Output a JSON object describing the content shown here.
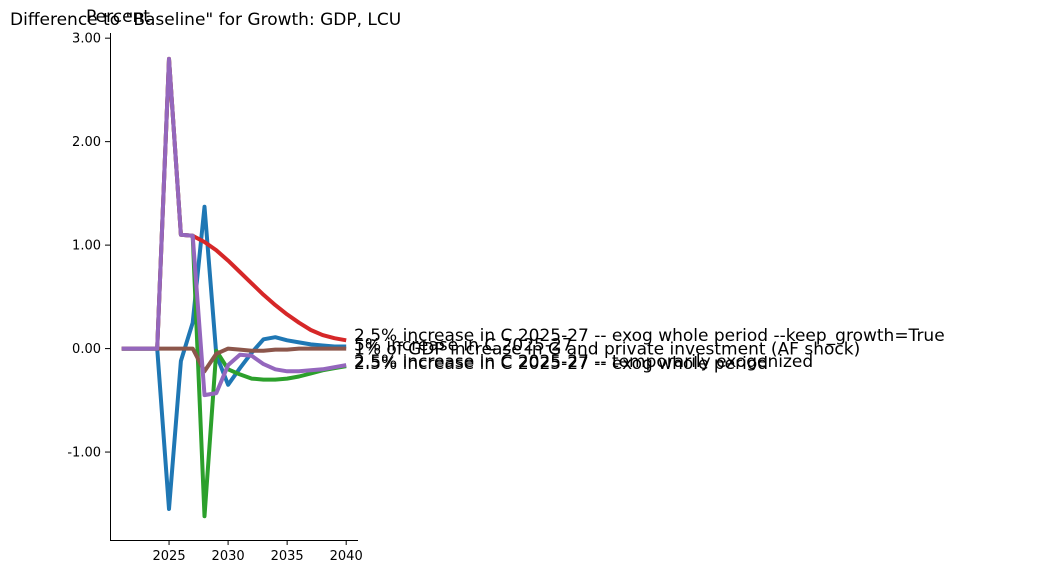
{
  "chart_data": {
    "type": "line",
    "title": "Difference to \"Baseline\" for Growth: GDP, LCU",
    "ylabel": "Percent",
    "xlabel": "",
    "xlim": [
      2020,
      2041
    ],
    "ylim": [
      -1.85,
      3.05
    ],
    "xticks": [
      2025,
      2030,
      2035,
      2040
    ],
    "xtick_labels": [
      "2025",
      "2030",
      "2035",
      "2040"
    ],
    "yticks": [
      3.0,
      2.0,
      1.0,
      0.0,
      -1.0
    ],
    "ytick_labels": [
      "3.00",
      "2.00",
      "1.00",
      "0.00",
      "-1.00"
    ],
    "grid": false,
    "series": [
      {
        "name": "5% increase in C 2025-27",
        "color": "#1f77b4",
        "x": [
          2021,
          2022,
          2023,
          2024,
          2025,
          2026,
          2027,
          2028,
          2029,
          2030,
          2031,
          2032,
          2033,
          2034,
          2035,
          2036,
          2037,
          2038,
          2039,
          2040
        ],
        "values": [
          0,
          0,
          0,
          0,
          -1.55,
          -0.12,
          0.25,
          1.37,
          -0.06,
          -0.35,
          -0.19,
          -0.04,
          0.09,
          0.11,
          0.08,
          0.06,
          0.04,
          0.03,
          0.02,
          0.02
        ]
      },
      {
        "name": "2.5% increase in C 2025-27 -- exog whole period",
        "color": "#2ca02c",
        "x": [
          2021,
          2022,
          2023,
          2024,
          2025,
          2026,
          2027,
          2028,
          2029,
          2030,
          2031,
          2032,
          2033,
          2034,
          2035,
          2036,
          2037,
          2038,
          2039,
          2040
        ],
        "values": [
          0,
          0,
          0,
          0,
          2.8,
          1.1,
          1.09,
          -1.62,
          -0.02,
          -0.2,
          -0.25,
          -0.29,
          -0.3,
          -0.3,
          -0.29,
          -0.27,
          -0.24,
          -0.21,
          -0.19,
          -0.17
        ]
      },
      {
        "name": "2.5% increase in C 2025-27 -- exog whole period --keep_growth=True",
        "color": "#d62728",
        "x": [
          2021,
          2022,
          2023,
          2024,
          2025,
          2026,
          2027,
          2028,
          2029,
          2030,
          2031,
          2032,
          2033,
          2034,
          2035,
          2036,
          2037,
          2038,
          2039,
          2040
        ],
        "values": [
          0,
          0,
          0,
          0,
          2.8,
          1.1,
          1.09,
          1.03,
          0.95,
          0.85,
          0.74,
          0.63,
          0.52,
          0.42,
          0.33,
          0.25,
          0.18,
          0.13,
          0.1,
          0.08
        ]
      },
      {
        "name": "1% of GDP increase in G and private investment (AF shock)",
        "color": "#8c564b",
        "x": [
          2021,
          2022,
          2023,
          2024,
          2025,
          2026,
          2027,
          2028,
          2029,
          2030,
          2031,
          2032,
          2033,
          2034,
          2035,
          2036,
          2037,
          2038,
          2039,
          2040
        ],
        "values": [
          0,
          0,
          0,
          0,
          0,
          0,
          0,
          -0.22,
          -0.05,
          0,
          -0.01,
          -0.02,
          -0.02,
          -0.01,
          -0.01,
          0,
          0,
          0,
          0,
          0
        ]
      },
      {
        "name": "2.5% increase in C 2025-27 -- temporarily exogenized",
        "color": "#9467bd",
        "x": [
          2021,
          2022,
          2023,
          2024,
          2025,
          2026,
          2027,
          2028,
          2029,
          2030,
          2031,
          2032,
          2033,
          2034,
          2035,
          2036,
          2037,
          2038,
          2039,
          2040
        ],
        "values": [
          0,
          0,
          0,
          0,
          2.8,
          1.1,
          1.09,
          -0.45,
          -0.43,
          -0.16,
          -0.06,
          -0.07,
          -0.15,
          -0.2,
          -0.22,
          -0.22,
          -0.21,
          -0.2,
          -0.18,
          -0.16
        ]
      }
    ],
    "annotations": [
      {
        "text": "2.5% increase in C 2025-27 -- exog whole period --keep_growth=True",
        "y": 0.13
      },
      {
        "text": "5% increase in C 2025-27",
        "y": 0.04
      },
      {
        "text": "1% of GDP increase in G and private investment (AF shock)",
        "y": 0.0
      },
      {
        "text": "2.5% increase in C 2025-27 -- temporarily exogenized",
        "y": -0.12
      },
      {
        "text": "2.5% increase in C 2025-27 -- exog whole period",
        "y": -0.14
      }
    ]
  }
}
